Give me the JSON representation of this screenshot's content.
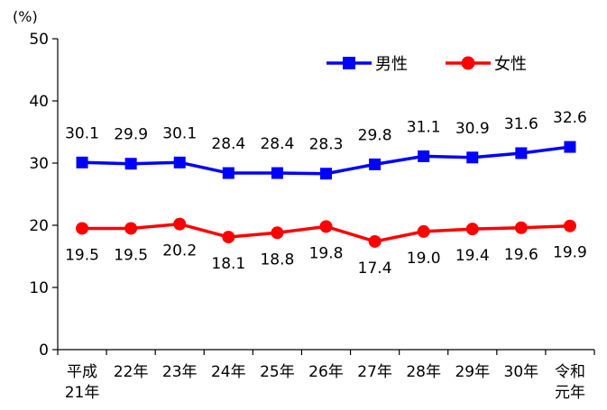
{
  "chart_data": {
    "type": "line",
    "unit_label": "(%)",
    "categories": [
      [
        "平成",
        "21年"
      ],
      [
        "22年"
      ],
      [
        "23年"
      ],
      [
        "24年"
      ],
      [
        "25年"
      ],
      [
        "26年"
      ],
      [
        "27年"
      ],
      [
        "28年"
      ],
      [
        "29年"
      ],
      [
        "30年"
      ],
      [
        "令和",
        "元年"
      ]
    ],
    "ylim": [
      0,
      50
    ],
    "yticks": [
      0,
      10,
      20,
      30,
      40,
      50
    ],
    "grid": false,
    "legend_position": "top-right",
    "series": [
      {
        "name": "男性",
        "color": "#0000ff",
        "marker": "square",
        "label_position": "above",
        "values": [
          30.1,
          29.9,
          30.1,
          28.4,
          28.4,
          28.3,
          29.8,
          31.1,
          30.9,
          31.6,
          32.6
        ]
      },
      {
        "name": "女性",
        "color": "#ff0000",
        "marker": "circle",
        "label_position": "below",
        "values": [
          19.5,
          19.5,
          20.2,
          18.1,
          18.8,
          19.8,
          17.4,
          19.0,
          19.4,
          19.6,
          19.9
        ]
      }
    ]
  }
}
